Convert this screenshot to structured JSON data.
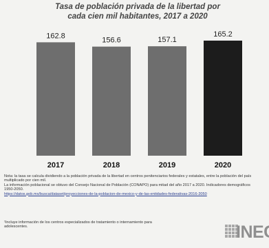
{
  "chart_data": {
    "type": "bar",
    "title": "Tasa de población privada de la libertad por cada cien mil habitantes, 2017 a 2020",
    "title_lines": [
      "Tasa de población privada de la libertad por",
      "cada cien mil habitantes, 2017 a 2020"
    ],
    "categories": [
      "2017",
      "2018",
      "2019",
      "2020"
    ],
    "values": [
      162.8,
      156.6,
      157.1,
      165.2
    ],
    "value_labels": [
      "162.8",
      "156.6",
      "157.1",
      "165.2"
    ],
    "ylim": [
      0,
      180
    ],
    "bar_colors": [
      "#6e6e6e",
      "#6e6e6e",
      "#6e6e6e",
      "#1c1c1c"
    ],
    "grid": false,
    "legend": "none"
  },
  "notes": {
    "line1": "Nota: la tasa se calcula dividiendo a la población privada de la libertad en centros penitenciarios federales y estatales, entre la población del país multiplicado por cien mil.",
    "line2": "La información poblacional se obtuvo del Consejo Nacional de Población (CONAPO) para mitad del año 2017 a 2020. Indicadores demográficos 1950-2050.",
    "link": "https://datos.gob.mx/busca/dataset/proyecciones-de-la-poblacion-de-mexico-y-de-las-entidades-federativas-2016-2050"
  },
  "footer": {
    "text": "¹Incluye información de los centros especializados de tratamiento o internamiento para adolescentes."
  },
  "logo": {
    "text": "INEGI",
    "icon": "inegi-logo-icon"
  }
}
